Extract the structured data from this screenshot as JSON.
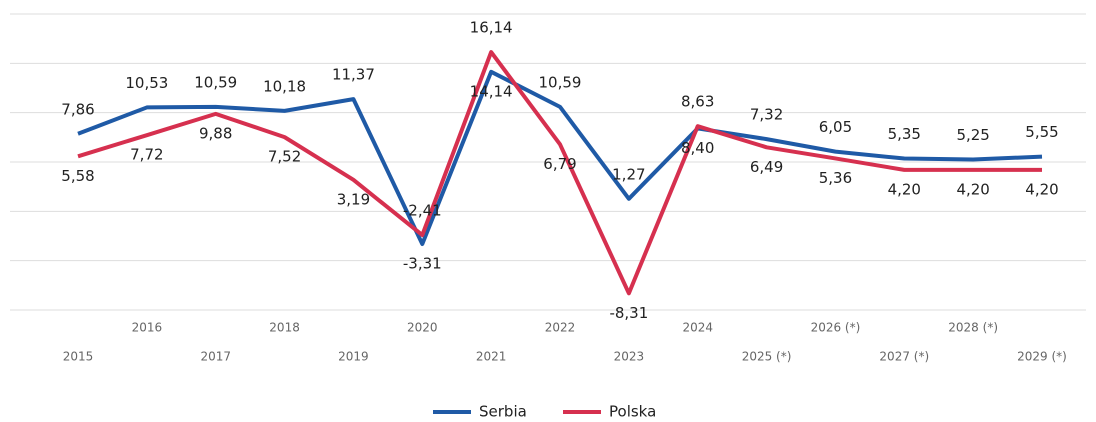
{
  "chart_data": {
    "type": "line",
    "categories": [
      "2015",
      "2016",
      "2017",
      "2018",
      "2019",
      "2020",
      "2021",
      "2022",
      "2023",
      "2024",
      "2025 (*)",
      "2026 (*)",
      "2027 (*)",
      "2028 (*)",
      "2029 (*)"
    ],
    "series": [
      {
        "name": "Serbia",
        "color": "#1f5aa6",
        "values": [
          7.86,
          10.53,
          10.59,
          10.18,
          11.37,
          -3.31,
          14.14,
          10.59,
          1.27,
          8.4,
          7.32,
          6.05,
          5.35,
          5.25,
          5.55
        ],
        "value_labels": [
          "7,86",
          "10,53",
          "10,59",
          "10,18",
          "11,37",
          "-3,31",
          "14,14",
          "10,59",
          "1,27",
          "8,40",
          "7,32",
          "6,05",
          "5,35",
          "5,25",
          "5,55"
        ]
      },
      {
        "name": "Polska",
        "color": "#d6304f",
        "values": [
          5.58,
          7.72,
          9.88,
          7.52,
          3.19,
          -2.41,
          16.14,
          6.79,
          -8.31,
          8.63,
          6.49,
          5.36,
          4.2,
          4.2,
          4.2
        ],
        "value_labels": [
          "5,58",
          "7,72",
          "9,88",
          "7,52",
          "3,19",
          "-2,41",
          "16,14",
          "6,79",
          "-8,31",
          "8,63",
          "6,49",
          "5,36",
          "4,20",
          "4,20",
          "4,20"
        ]
      }
    ],
    "ylim": [
      -10,
      20
    ],
    "yticks": [
      -10,
      -5,
      0,
      5,
      10,
      15,
      20
    ],
    "grid": true,
    "legend": "bottom"
  }
}
